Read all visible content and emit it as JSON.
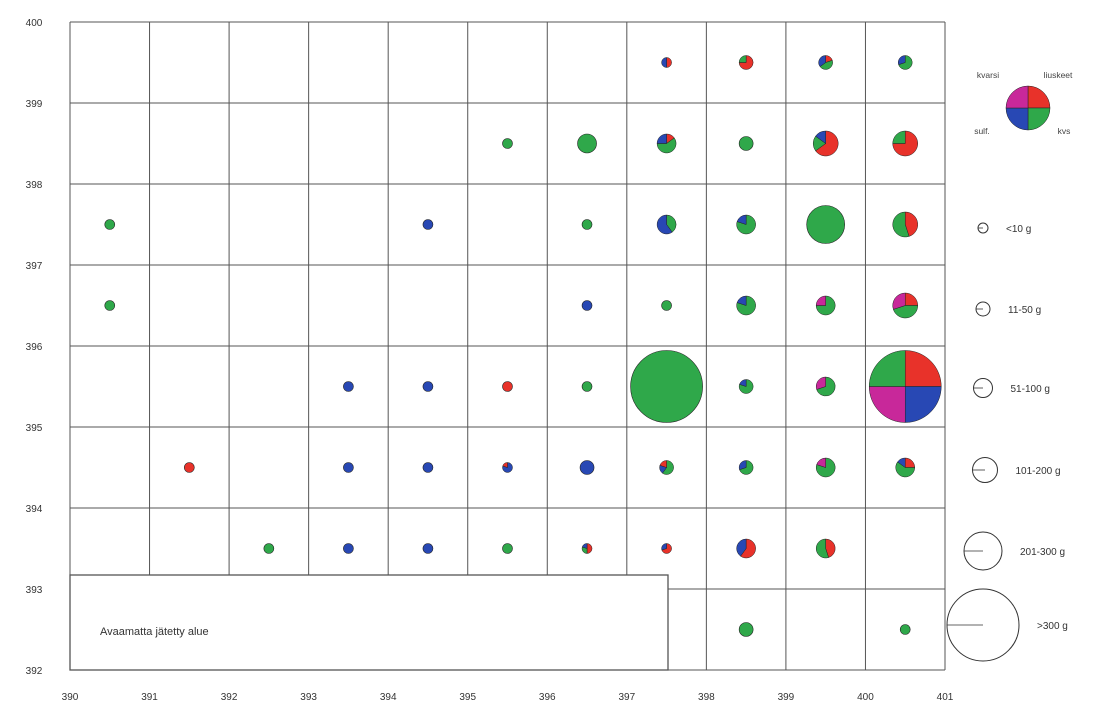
{
  "colors": {
    "piikivi": "#2fa84a",
    "kvartsi": "#e8322a",
    "other": "#2848b4",
    "grid_line": "#555555"
  },
  "chart_data": {
    "type": "pie-grid",
    "xlim": [
      390,
      401
    ],
    "ylim": [
      392,
      400
    ],
    "x_tick_labels": [
      "390",
      "391",
      "392",
      "393",
      "394",
      "395",
      "396",
      "397",
      "398",
      "399",
      "400",
      "401"
    ],
    "y_tick_labels": [
      "392",
      "393",
      "394",
      "395",
      "396",
      "397",
      "398",
      "399",
      "400"
    ],
    "size_classes": [
      {
        "label": "<10 g",
        "level": 1
      },
      {
        "label": "11-50 g",
        "level": 2
      },
      {
        "label": "51-100 g",
        "level": 3
      },
      {
        "label": "101-200 g",
        "level": 4
      },
      {
        "label": "201-300 g",
        "level": 5
      },
      {
        "label": ">300 g",
        "level": 6
      }
    ],
    "key_labels": [
      "kvarsi",
      "liuskeet",
      "sulf.",
      "kvs"
    ],
    "note": "Avaamatta jätetty alue",
    "cells": [
      {
        "x": 397,
        "y": 399,
        "level": 1,
        "pie": [
          [
            "kvartsi",
            50
          ],
          [
            "other",
            50
          ]
        ]
      },
      {
        "x": 398,
        "y": 399,
        "level": 2,
        "pie": [
          [
            "kvartsi",
            75
          ],
          [
            "piikivi",
            25
          ]
        ]
      },
      {
        "x": 399,
        "y": 399,
        "level": 2,
        "pie": [
          [
            "kvartsi",
            20
          ],
          [
            "piikivi",
            45
          ],
          [
            "other",
            35
          ]
        ]
      },
      {
        "x": 400,
        "y": 399,
        "level": 2,
        "pie": [
          [
            "piikivi",
            70
          ],
          [
            "other",
            30
          ]
        ]
      },
      {
        "x": 395,
        "y": 398,
        "level": 1,
        "pie": [
          [
            "piikivi",
            100
          ]
        ]
      },
      {
        "x": 396,
        "y": 398,
        "level": 3,
        "pie": [
          [
            "piikivi",
            100
          ]
        ]
      },
      {
        "x": 397,
        "y": 398,
        "level": 3,
        "pie": [
          [
            "kvartsi",
            15
          ],
          [
            "piikivi",
            60
          ],
          [
            "other",
            25
          ]
        ]
      },
      {
        "x": 398,
        "y": 398,
        "level": 2,
        "pie": [
          [
            "piikivi",
            100
          ]
        ]
      },
      {
        "x": 399,
        "y": 398,
        "level": 4,
        "pie": [
          [
            "kvartsi",
            65
          ],
          [
            "piikivi",
            20
          ],
          [
            "other",
            15
          ]
        ]
      },
      {
        "x": 400,
        "y": 398,
        "level": 4,
        "pie": [
          [
            "kvartsi",
            75
          ],
          [
            "piikivi",
            25
          ]
        ]
      },
      {
        "x": 390,
        "y": 397,
        "level": 1,
        "pie": [
          [
            "piikivi",
            100
          ]
        ]
      },
      {
        "x": 394,
        "y": 397,
        "level": 1,
        "pie": [
          [
            "other",
            100
          ]
        ]
      },
      {
        "x": 396,
        "y": 397,
        "level": 1,
        "pie": [
          [
            "piikivi",
            100
          ]
        ]
      },
      {
        "x": 397,
        "y": 397,
        "level": 3,
        "pie": [
          [
            "piikivi",
            40
          ],
          [
            "other",
            60
          ]
        ]
      },
      {
        "x": 398,
        "y": 397,
        "level": 3,
        "pie": [
          [
            "piikivi",
            80
          ],
          [
            "other",
            20
          ]
        ]
      },
      {
        "x": 399,
        "y": 397,
        "level": 5,
        "pie": [
          [
            "piikivi",
            100
          ]
        ]
      },
      {
        "x": 400,
        "y": 397,
        "level": 4,
        "pie": [
          [
            "kvartsi",
            45
          ],
          [
            "piikivi",
            55
          ]
        ]
      },
      {
        "x": 390,
        "y": 396,
        "level": 1,
        "pie": [
          [
            "piikivi",
            100
          ]
        ]
      },
      {
        "x": 396,
        "y": 396,
        "level": 1,
        "pie": [
          [
            "other",
            100
          ]
        ]
      },
      {
        "x": 397,
        "y": 396,
        "level": 1,
        "pie": [
          [
            "piikivi",
            100
          ]
        ]
      },
      {
        "x": 398,
        "y": 396,
        "level": 3,
        "pie": [
          [
            "piikivi",
            80
          ],
          [
            "other",
            20
          ]
        ]
      },
      {
        "x": 399,
        "y": 396,
        "level": 3,
        "pie": [
          [
            "piikivi",
            75
          ],
          [
            "kvsmag",
            25
          ]
        ]
      },
      {
        "x": 400,
        "y": 396,
        "level": 4,
        "pie": [
          [
            "kvartsi",
            25
          ],
          [
            "piikivi",
            45
          ],
          [
            "kvsmag",
            30
          ]
        ]
      },
      {
        "x": 393,
        "y": 395,
        "level": 1,
        "pie": [
          [
            "other",
            100
          ]
        ]
      },
      {
        "x": 394,
        "y": 395,
        "level": 1,
        "pie": [
          [
            "other",
            100
          ]
        ]
      },
      {
        "x": 395,
        "y": 395,
        "level": 1,
        "pie": [
          [
            "kvartsi",
            100
          ]
        ]
      },
      {
        "x": 396,
        "y": 395,
        "level": 1,
        "pie": [
          [
            "piikivi",
            100
          ]
        ]
      },
      {
        "x": 397,
        "y": 395,
        "level": 6,
        "pie": [
          [
            "piikivi",
            100
          ]
        ]
      },
      {
        "x": 398,
        "y": 395,
        "level": 2,
        "pie": [
          [
            "piikivi",
            80
          ],
          [
            "other",
            20
          ]
        ]
      },
      {
        "x": 399,
        "y": 395,
        "level": 3,
        "pie": [
          [
            "piikivi",
            70
          ],
          [
            "kvsmag",
            30
          ]
        ]
      },
      {
        "x": 400,
        "y": 395,
        "level": 6,
        "pie": [
          [
            "kvartsi",
            25
          ],
          [
            "other",
            25
          ],
          [
            "kvsmag",
            25
          ],
          [
            "piikivi",
            25
          ]
        ]
      },
      {
        "x": 391,
        "y": 394,
        "level": 1,
        "pie": [
          [
            "kvartsi",
            100
          ]
        ]
      },
      {
        "x": 393,
        "y": 394,
        "level": 1,
        "pie": [
          [
            "other",
            100
          ]
        ]
      },
      {
        "x": 394,
        "y": 394,
        "level": 1,
        "pie": [
          [
            "other",
            100
          ]
        ]
      },
      {
        "x": 395,
        "y": 394,
        "level": 1,
        "pie": [
          [
            "other",
            80
          ],
          [
            "kvartsi",
            20
          ]
        ]
      },
      {
        "x": 396,
        "y": 394,
        "level": 2,
        "pie": [
          [
            "other",
            100
          ]
        ]
      },
      {
        "x": 397,
        "y": 394,
        "level": 2,
        "pie": [
          [
            "piikivi",
            60
          ],
          [
            "other",
            20
          ],
          [
            "kvartsi",
            20
          ]
        ]
      },
      {
        "x": 398,
        "y": 394,
        "level": 2,
        "pie": [
          [
            "piikivi",
            70
          ],
          [
            "other",
            30
          ]
        ]
      },
      {
        "x": 399,
        "y": 394,
        "level": 3,
        "pie": [
          [
            "piikivi",
            80
          ],
          [
            "kvsmag",
            20
          ]
        ]
      },
      {
        "x": 400,
        "y": 394,
        "level": 3,
        "pie": [
          [
            "kvartsi",
            25
          ],
          [
            "piikivi",
            60
          ],
          [
            "other",
            15
          ]
        ]
      },
      {
        "x": 392,
        "y": 393,
        "level": 1,
        "pie": [
          [
            "piikivi",
            100
          ]
        ]
      },
      {
        "x": 393,
        "y": 393,
        "level": 1,
        "pie": [
          [
            "other",
            100
          ]
        ]
      },
      {
        "x": 394,
        "y": 393,
        "level": 1,
        "pie": [
          [
            "other",
            100
          ]
        ]
      },
      {
        "x": 395,
        "y": 393,
        "level": 1,
        "pie": [
          [
            "piikivi",
            100
          ]
        ]
      },
      {
        "x": 396,
        "y": 393,
        "level": 1,
        "pie": [
          [
            "kvartsi",
            50
          ],
          [
            "piikivi",
            30
          ],
          [
            "other",
            20
          ]
        ]
      },
      {
        "x": 397,
        "y": 393,
        "level": 1,
        "pie": [
          [
            "kvartsi",
            70
          ],
          [
            "other",
            30
          ]
        ]
      },
      {
        "x": 398,
        "y": 393,
        "level": 3,
        "pie": [
          [
            "kvartsi",
            60
          ],
          [
            "other",
            40
          ]
        ]
      },
      {
        "x": 399,
        "y": 393,
        "level": 3,
        "pie": [
          [
            "kvartsi",
            45
          ],
          [
            "piikivi",
            55
          ]
        ]
      },
      {
        "x": 398,
        "y": 392,
        "level": 2,
        "pie": [
          [
            "piikivi",
            100
          ]
        ]
      },
      {
        "x": 400,
        "y": 392,
        "level": 1,
        "pie": [
          [
            "piikivi",
            100
          ]
        ]
      }
    ]
  }
}
